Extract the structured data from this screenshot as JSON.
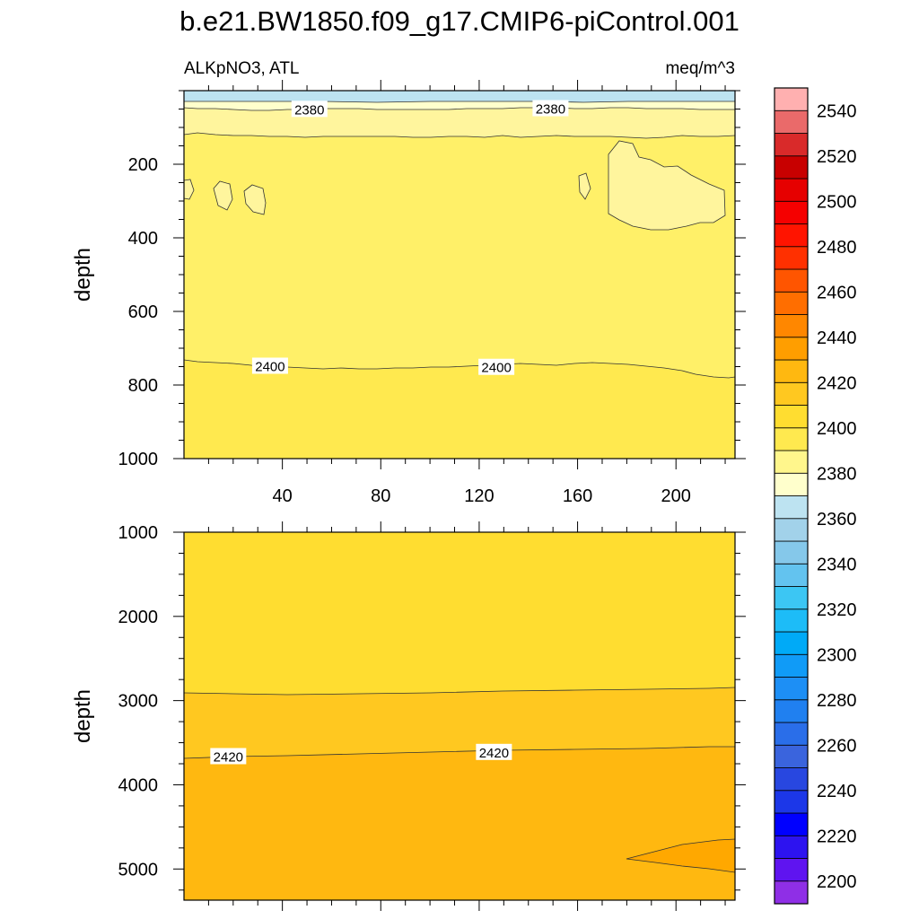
{
  "title": "b.e21.BW1850.f09_g17.CMIP6-piControl.001",
  "chart_data": {
    "type": "contour",
    "panels": [
      {
        "id": "upper",
        "left_label": "ALKpNO3, ATL",
        "right_label": "meq/m^3",
        "ylabel": "depth",
        "xlim": [
          0,
          224
        ],
        "ylim": [
          0,
          1000
        ],
        "y_inverted": true,
        "xticks": [
          40,
          80,
          120,
          160,
          200
        ],
        "yticks": [
          200,
          400,
          600,
          800,
          1000
        ],
        "contour_labels": [
          {
            "text": "2380",
            "x": 51,
            "y": 52
          },
          {
            "text": "2380",
            "x": 149,
            "y": 50
          },
          {
            "text": "2400",
            "x": 35,
            "y": 750
          },
          {
            "text": "2400",
            "x": 127,
            "y": 753
          }
        ]
      },
      {
        "id": "lower",
        "ylabel": "depth",
        "xlim": [
          0,
          224
        ],
        "ylim": [
          1000,
          5370
        ],
        "y_inverted": true,
        "yticks": [
          1000,
          2000,
          3000,
          4000,
          5000
        ],
        "contour_labels": [
          {
            "text": "2420",
            "x": 18,
            "y": 3670
          },
          {
            "text": "2420",
            "x": 126,
            "y": 3620
          }
        ]
      }
    ],
    "colorbar": {
      "levels": [
        2200,
        2210,
        2220,
        2230,
        2240,
        2250,
        2260,
        2270,
        2280,
        2290,
        2300,
        2310,
        2320,
        2330,
        2340,
        2350,
        2360,
        2370,
        2380,
        2390,
        2400,
        2410,
        2420,
        2430,
        2440,
        2450,
        2460,
        2470,
        2480,
        2490,
        2500,
        2510,
        2520,
        2530,
        2540,
        2550
      ],
      "tick_labels": [
        "2200",
        "2220",
        "2240",
        "2260",
        "2280",
        "2300",
        "2320",
        "2340",
        "2360",
        "2380",
        "2400",
        "2420",
        "2440",
        "2460",
        "2480",
        "2500",
        "2520",
        "2540"
      ],
      "colors": [
        "#8f2fe6",
        "#5f14f0",
        "#2d13f0",
        "#0000ff",
        "#1c37e8",
        "#2847e0",
        "#3a64dd",
        "#2a6ee9",
        "#2080f0",
        "#1d8ff5",
        "#109bf7",
        "#00aaf7",
        "#1dbcf7",
        "#3cc6f3",
        "#63c3ef",
        "#85c8ea",
        "#a2d2ea",
        "#bde3f1",
        "#ffffcc",
        "#fff68c",
        "#ffe94f",
        "#ffdd30",
        "#ffc820",
        "#ffb810",
        "#ff9e00",
        "#ff8700",
        "#ff6e00",
        "#ff5500",
        "#ff3000",
        "#ff1400",
        "#f50000",
        "#e60000",
        "#c80000",
        "#d92a2a",
        "#ea6a6a",
        "#ffb0b0"
      ]
    }
  }
}
